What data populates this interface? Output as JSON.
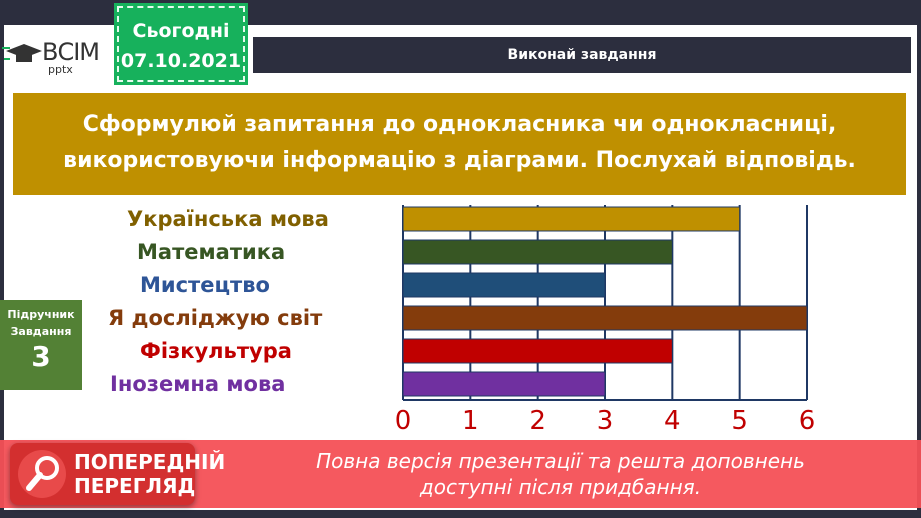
{
  "header": {
    "logo": "ВСІМ",
    "logo_sub": "pptx",
    "date_label": "Сьогодні",
    "date": "07.10.2021",
    "title": "Виконай завдання"
  },
  "task": {
    "line1": "Сформулюй запитання до однокласника чи однокласниці,",
    "line2": "використовуючи інформацію з діаграми. Послухай відповідь."
  },
  "side": {
    "line1": "Підручник",
    "line2": "Завдання",
    "number": "3"
  },
  "chart_data": {
    "type": "bar",
    "orientation": "horizontal",
    "categories": [
      "Українська мова",
      "Математика",
      "Мистецтво",
      "Я досліджую світ",
      "Фізкультура",
      "Іноземна мова"
    ],
    "values": [
      5,
      4,
      3,
      6,
      4,
      3
    ],
    "colors": [
      "#bf9000",
      "#375623",
      "#1f4e79",
      "#843c0c",
      "#c00000",
      "#7030a0"
    ],
    "xlim": [
      0,
      6
    ],
    "ticks": [
      "0",
      "1",
      "2",
      "3",
      "4",
      "5",
      "6"
    ],
    "grid": true
  },
  "banner": {
    "line1": "Повна версія презентації та решта доповнень",
    "line2": "доступні після придбання."
  },
  "preview": {
    "line1": "ПОПЕРЕДНІЙ",
    "line2": "ПЕРЕГЛЯД"
  }
}
